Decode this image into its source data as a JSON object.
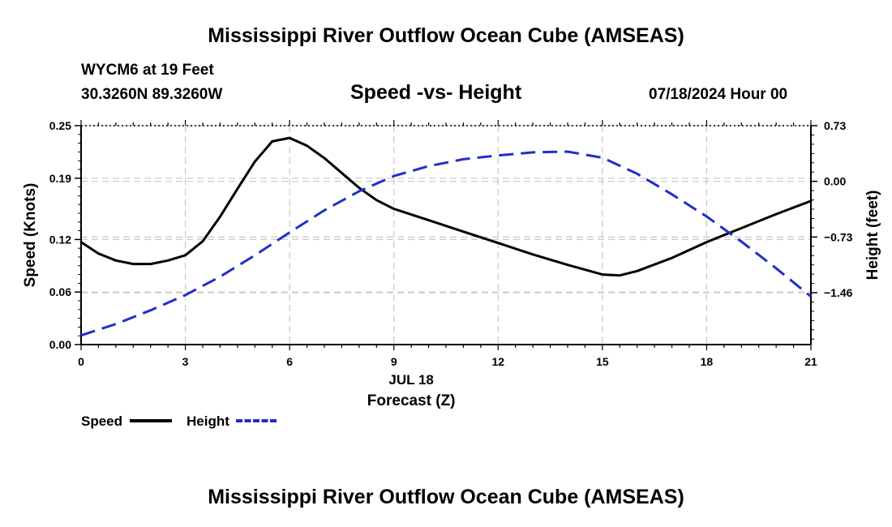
{
  "header": {
    "title": "Mississippi River Outflow Ocean Cube (AMSEAS)",
    "station": "WYCM6 at 19 Feet",
    "coords": "30.3260N  89.3260W",
    "subtitle": "Speed -vs- Height",
    "datetime": "07/18/2024 Hour 00"
  },
  "footer": {
    "title": "Mississippi River Outflow Ocean Cube (AMSEAS)"
  },
  "legend": {
    "speed_label": "Speed",
    "height_label": "Height"
  },
  "chart_data": {
    "type": "line",
    "title": "Speed -vs- Height",
    "xlabel": "Forecast (Z)",
    "xdate": "JUL 18",
    "ylabel_left": "Speed (Knots)",
    "ylabel_right": "Height (feet)",
    "xlim": [
      0,
      21
    ],
    "xticks": [
      0,
      3,
      6,
      9,
      12,
      15,
      18,
      21
    ],
    "ylim_left": [
      0,
      0.25
    ],
    "yticks_left": [
      0.0,
      0.06,
      0.12,
      0.19,
      0.25
    ],
    "ytick_labels_left": [
      "0.00",
      "0.06",
      "0.12",
      "0.19",
      "0.25"
    ],
    "ylim_right": [
      -2.14,
      0.73
    ],
    "yticks_right": [
      -1.46,
      -0.73,
      0.0,
      0.73
    ],
    "ytick_labels_right": [
      "−1.46",
      "−0.73",
      "0.00",
      "0.73"
    ],
    "grid": true,
    "series": [
      {
        "name": "Speed",
        "color": "#000000",
        "style": "solid",
        "axis": "left",
        "x": [
          0,
          0.5,
          1,
          1.5,
          2,
          2.5,
          3,
          3.5,
          4,
          4.5,
          5,
          5.5,
          6,
          6.5,
          7,
          7.5,
          8,
          8.5,
          9,
          10,
          11,
          12,
          13,
          14,
          15,
          15.5,
          16,
          17,
          18,
          19,
          20,
          21
        ],
        "values": [
          0.117,
          0.104,
          0.096,
          0.092,
          0.092,
          0.096,
          0.102,
          0.118,
          0.146,
          0.178,
          0.209,
          0.232,
          0.236,
          0.227,
          0.213,
          0.196,
          0.179,
          0.165,
          0.155,
          0.142,
          0.129,
          0.116,
          0.103,
          0.091,
          0.08,
          0.079,
          0.084,
          0.099,
          0.117,
          0.133,
          0.149,
          0.164
        ]
      },
      {
        "name": "Height",
        "color": "#1f2fc8",
        "style": "dashed",
        "axis": "right",
        "x": [
          0,
          1,
          2,
          3,
          4,
          5,
          6,
          7,
          8,
          9,
          10,
          11,
          12,
          13,
          14,
          15,
          16,
          17,
          18,
          19,
          20,
          21
        ],
        "values": [
          -2.02,
          -1.87,
          -1.69,
          -1.49,
          -1.25,
          -0.97,
          -0.67,
          -0.38,
          -0.13,
          0.07,
          0.2,
          0.29,
          0.34,
          0.38,
          0.39,
          0.31,
          0.1,
          -0.17,
          -0.46,
          -0.79,
          -1.14,
          -1.51
        ]
      }
    ]
  }
}
